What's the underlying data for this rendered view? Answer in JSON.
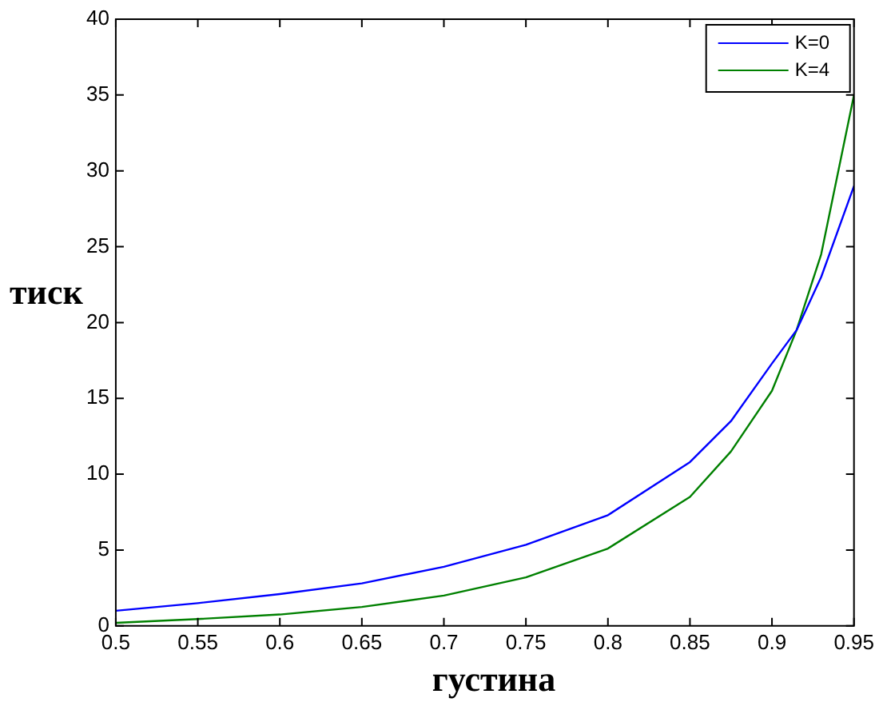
{
  "chart_data": {
    "type": "line",
    "xlabel": "густина",
    "ylabel": "тиск",
    "xlim": [
      0.5,
      0.95
    ],
    "xticks": [
      {
        "value": 0.5,
        "label": "0.5"
      },
      {
        "value": 0.55,
        "label": "0.55"
      },
      {
        "value": 0.6,
        "label": "0.6"
      },
      {
        "value": 0.65,
        "label": "0.65"
      },
      {
        "value": 0.7,
        "label": "0.7"
      },
      {
        "value": 0.75,
        "label": "0.75"
      },
      {
        "value": 0.8,
        "label": "0.8"
      },
      {
        "value": 0.85,
        "label": "0.85"
      },
      {
        "value": 0.9,
        "label": "0.9"
      },
      {
        "value": 0.95,
        "label": "0.95"
      }
    ],
    "ylim": [
      0,
      40
    ],
    "yticks": [
      0,
      5,
      10,
      15,
      20,
      25,
      30,
      35,
      40
    ],
    "x": [
      0.5,
      0.55,
      0.6,
      0.65,
      0.7,
      0.75,
      0.8,
      0.85,
      0.875,
      0.9,
      0.915,
      0.93,
      0.95
    ],
    "series": [
      {
        "name": "K=0",
        "color": "#0000ff",
        "values": [
          1.0,
          1.5,
          2.1,
          2.8,
          3.9,
          5.35,
          7.3,
          10.8,
          13.5,
          17.3,
          19.5,
          23,
          29
        ]
      },
      {
        "name": "K=4",
        "color": "#008000",
        "values": [
          0.2,
          0.45,
          0.75,
          1.25,
          2.0,
          3.2,
          5.1,
          8.5,
          11.5,
          15.5,
          19.5,
          24.5,
          35
        ]
      }
    ],
    "legend": "top right",
    "grid": false,
    "marker": "none",
    "line_style": "solid"
  }
}
